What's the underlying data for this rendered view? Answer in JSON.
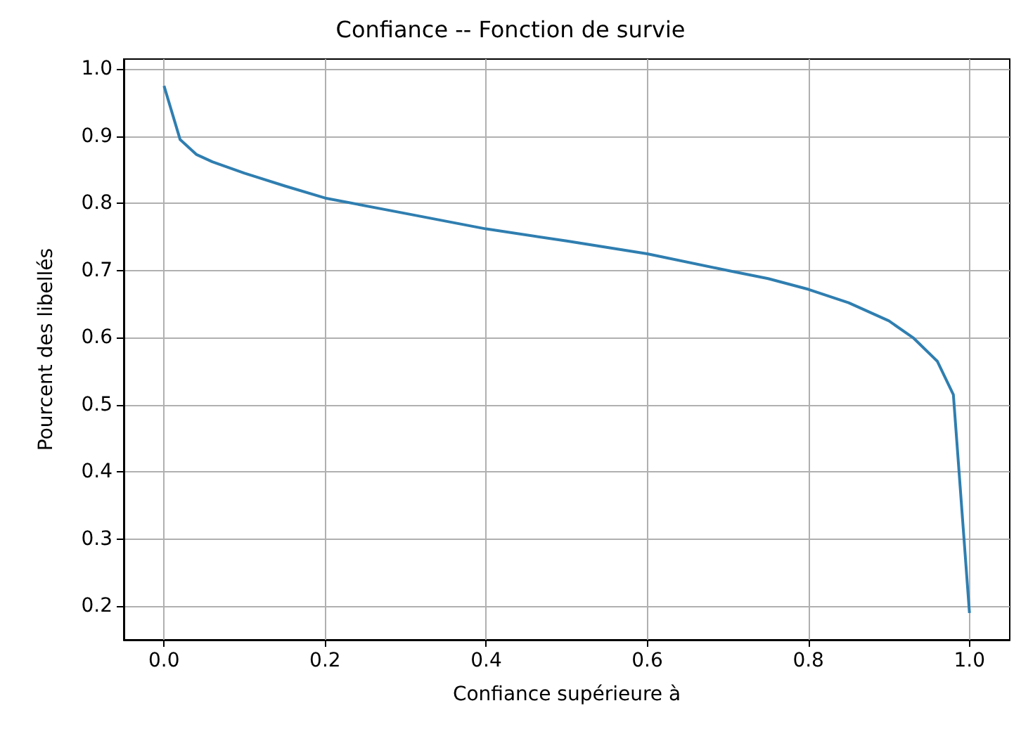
{
  "chart_data": {
    "type": "line",
    "title": "Confiance -- Fonction de survie",
    "xlabel": "Confiance supérieure à",
    "ylabel": "Pourcent des libellés",
    "x": [
      0,
      0.02,
      0.04,
      0.06,
      0.1,
      0.15,
      0.2,
      0.3,
      0.4,
      0.5,
      0.6,
      0.7,
      0.75,
      0.8,
      0.85,
      0.9,
      0.93,
      0.96,
      0.98,
      1.0
    ],
    "series": [
      {
        "color": "#2f7eb0",
        "values": [
          0.975,
          0.895,
          0.873,
          0.862,
          0.845,
          0.826,
          0.808,
          0.785,
          0.762,
          0.744,
          0.725,
          0.7,
          0.688,
          0.672,
          0.652,
          0.625,
          0.6,
          0.565,
          0.515,
          0.19
        ]
      }
    ],
    "xlim": [
      -0.05,
      1.05
    ],
    "xticks": [
      {
        "value": 0,
        "label": "0.0"
      },
      0.2,
      0.4,
      0.6,
      0.8,
      {
        "value": 1,
        "label": "1.0"
      }
    ],
    "ylim": [
      0.15,
      1.015
    ],
    "yticks": [
      0.2,
      0.3,
      0.4,
      0.5,
      0.6,
      0.7,
      0.8,
      0.9,
      {
        "value": 1,
        "label": "1.0"
      }
    ],
    "grid": true,
    "marker": "none",
    "line_style": "solid"
  }
}
